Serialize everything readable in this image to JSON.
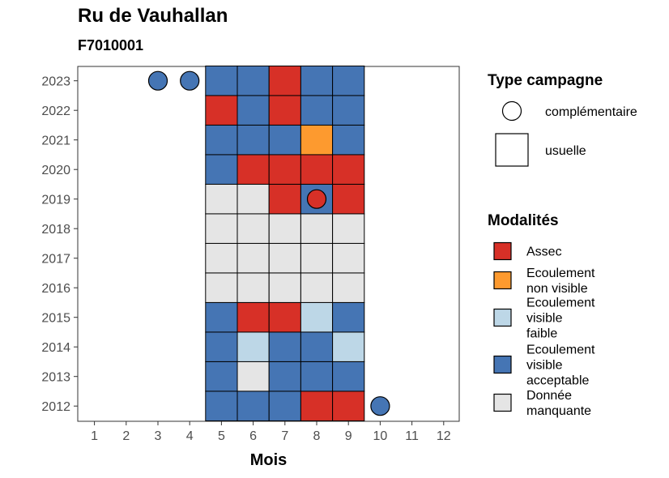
{
  "chart_data": {
    "type": "heatmap",
    "title": "Ru de Vauhallan",
    "subtitle": "F7010001",
    "xlabel": "Mois",
    "ylabel": "",
    "x_ticks": [
      "1",
      "2",
      "3",
      "4",
      "5",
      "6",
      "7",
      "8",
      "9",
      "10",
      "11",
      "12"
    ],
    "y_ticks": [
      "2012",
      "2013",
      "2014",
      "2015",
      "2016",
      "2017",
      "2018",
      "2019",
      "2020",
      "2021",
      "2022",
      "2023"
    ],
    "modalities": [
      {
        "key": "assec",
        "label": "Assec",
        "color": "#d73027"
      },
      {
        "key": "non_visible",
        "label": "Ecoulement non visible",
        "label_lines": [
          "Ecoulement",
          "non visible"
        ],
        "color": "#fd9a2f"
      },
      {
        "key": "faible",
        "label": "Ecoulement visible faible",
        "label_lines": [
          "Ecoulement",
          "visible",
          "faible"
        ],
        "color": "#bdd7e7"
      },
      {
        "key": "acceptable",
        "label": "Ecoulement visible acceptable",
        "label_lines": [
          "Ecoulement",
          "visible",
          "acceptable"
        ],
        "color": "#4575b4"
      },
      {
        "key": "manquante",
        "label": "Donnée manquante",
        "label_lines": [
          "Donnée",
          "manquante"
        ],
        "color": "#e5e5e5"
      }
    ],
    "campaign_types": [
      {
        "key": "complementaire",
        "label": "complémentaire",
        "shape": "circle"
      },
      {
        "key": "usuelle",
        "label": "usuelle",
        "shape": "square"
      }
    ],
    "legend_titles": {
      "campaign": "Type campagne",
      "modalities": "Modalités"
    },
    "cells": [
      {
        "year": 2023,
        "month": 5,
        "value": "acceptable"
      },
      {
        "year": 2023,
        "month": 6,
        "value": "acceptable"
      },
      {
        "year": 2023,
        "month": 7,
        "value": "assec"
      },
      {
        "year": 2023,
        "month": 8,
        "value": "acceptable"
      },
      {
        "year": 2023,
        "month": 9,
        "value": "acceptable"
      },
      {
        "year": 2022,
        "month": 5,
        "value": "assec"
      },
      {
        "year": 2022,
        "month": 6,
        "value": "acceptable"
      },
      {
        "year": 2022,
        "month": 7,
        "value": "assec"
      },
      {
        "year": 2022,
        "month": 8,
        "value": "acceptable"
      },
      {
        "year": 2022,
        "month": 9,
        "value": "acceptable"
      },
      {
        "year": 2021,
        "month": 5,
        "value": "acceptable"
      },
      {
        "year": 2021,
        "month": 6,
        "value": "acceptable"
      },
      {
        "year": 2021,
        "month": 7,
        "value": "acceptable"
      },
      {
        "year": 2021,
        "month": 8,
        "value": "non_visible"
      },
      {
        "year": 2021,
        "month": 9,
        "value": "acceptable"
      },
      {
        "year": 2020,
        "month": 5,
        "value": "acceptable"
      },
      {
        "year": 2020,
        "month": 6,
        "value": "assec"
      },
      {
        "year": 2020,
        "month": 7,
        "value": "assec"
      },
      {
        "year": 2020,
        "month": 8,
        "value": "assec"
      },
      {
        "year": 2020,
        "month": 9,
        "value": "assec"
      },
      {
        "year": 2019,
        "month": 5,
        "value": "manquante"
      },
      {
        "year": 2019,
        "month": 6,
        "value": "manquante"
      },
      {
        "year": 2019,
        "month": 7,
        "value": "assec"
      },
      {
        "year": 2019,
        "month": 8,
        "value": "acceptable"
      },
      {
        "year": 2019,
        "month": 9,
        "value": "assec"
      },
      {
        "year": 2018,
        "month": 5,
        "value": "manquante"
      },
      {
        "year": 2018,
        "month": 6,
        "value": "manquante"
      },
      {
        "year": 2018,
        "month": 7,
        "value": "manquante"
      },
      {
        "year": 2018,
        "month": 8,
        "value": "manquante"
      },
      {
        "year": 2018,
        "month": 9,
        "value": "manquante"
      },
      {
        "year": 2017,
        "month": 5,
        "value": "manquante"
      },
      {
        "year": 2017,
        "month": 6,
        "value": "manquante"
      },
      {
        "year": 2017,
        "month": 7,
        "value": "manquante"
      },
      {
        "year": 2017,
        "month": 8,
        "value": "manquante"
      },
      {
        "year": 2017,
        "month": 9,
        "value": "manquante"
      },
      {
        "year": 2016,
        "month": 5,
        "value": "manquante"
      },
      {
        "year": 2016,
        "month": 6,
        "value": "manquante"
      },
      {
        "year": 2016,
        "month": 7,
        "value": "manquante"
      },
      {
        "year": 2016,
        "month": 8,
        "value": "manquante"
      },
      {
        "year": 2016,
        "month": 9,
        "value": "manquante"
      },
      {
        "year": 2015,
        "month": 5,
        "value": "acceptable"
      },
      {
        "year": 2015,
        "month": 6,
        "value": "assec"
      },
      {
        "year": 2015,
        "month": 7,
        "value": "assec"
      },
      {
        "year": 2015,
        "month": 8,
        "value": "faible"
      },
      {
        "year": 2015,
        "month": 9,
        "value": "acceptable"
      },
      {
        "year": 2014,
        "month": 5,
        "value": "acceptable"
      },
      {
        "year": 2014,
        "month": 6,
        "value": "faible"
      },
      {
        "year": 2014,
        "month": 7,
        "value": "acceptable"
      },
      {
        "year": 2014,
        "month": 8,
        "value": "acceptable"
      },
      {
        "year": 2014,
        "month": 9,
        "value": "faible"
      },
      {
        "year": 2013,
        "month": 5,
        "value": "acceptable"
      },
      {
        "year": 2013,
        "month": 6,
        "value": "manquante"
      },
      {
        "year": 2013,
        "month": 7,
        "value": "acceptable"
      },
      {
        "year": 2013,
        "month": 8,
        "value": "acceptable"
      },
      {
        "year": 2013,
        "month": 9,
        "value": "acceptable"
      },
      {
        "year": 2012,
        "month": 5,
        "value": "acceptable"
      },
      {
        "year": 2012,
        "month": 6,
        "value": "acceptable"
      },
      {
        "year": 2012,
        "month": 7,
        "value": "acceptable"
      },
      {
        "year": 2012,
        "month": 8,
        "value": "assec"
      },
      {
        "year": 2012,
        "month": 9,
        "value": "assec"
      }
    ],
    "complementary_points": [
      {
        "year": 2023,
        "month": 3,
        "value": "acceptable"
      },
      {
        "year": 2023,
        "month": 4,
        "value": "acceptable"
      },
      {
        "year": 2019,
        "month": 8,
        "value": "assec"
      },
      {
        "year": 2012,
        "month": 10,
        "value": "acceptable"
      }
    ]
  }
}
